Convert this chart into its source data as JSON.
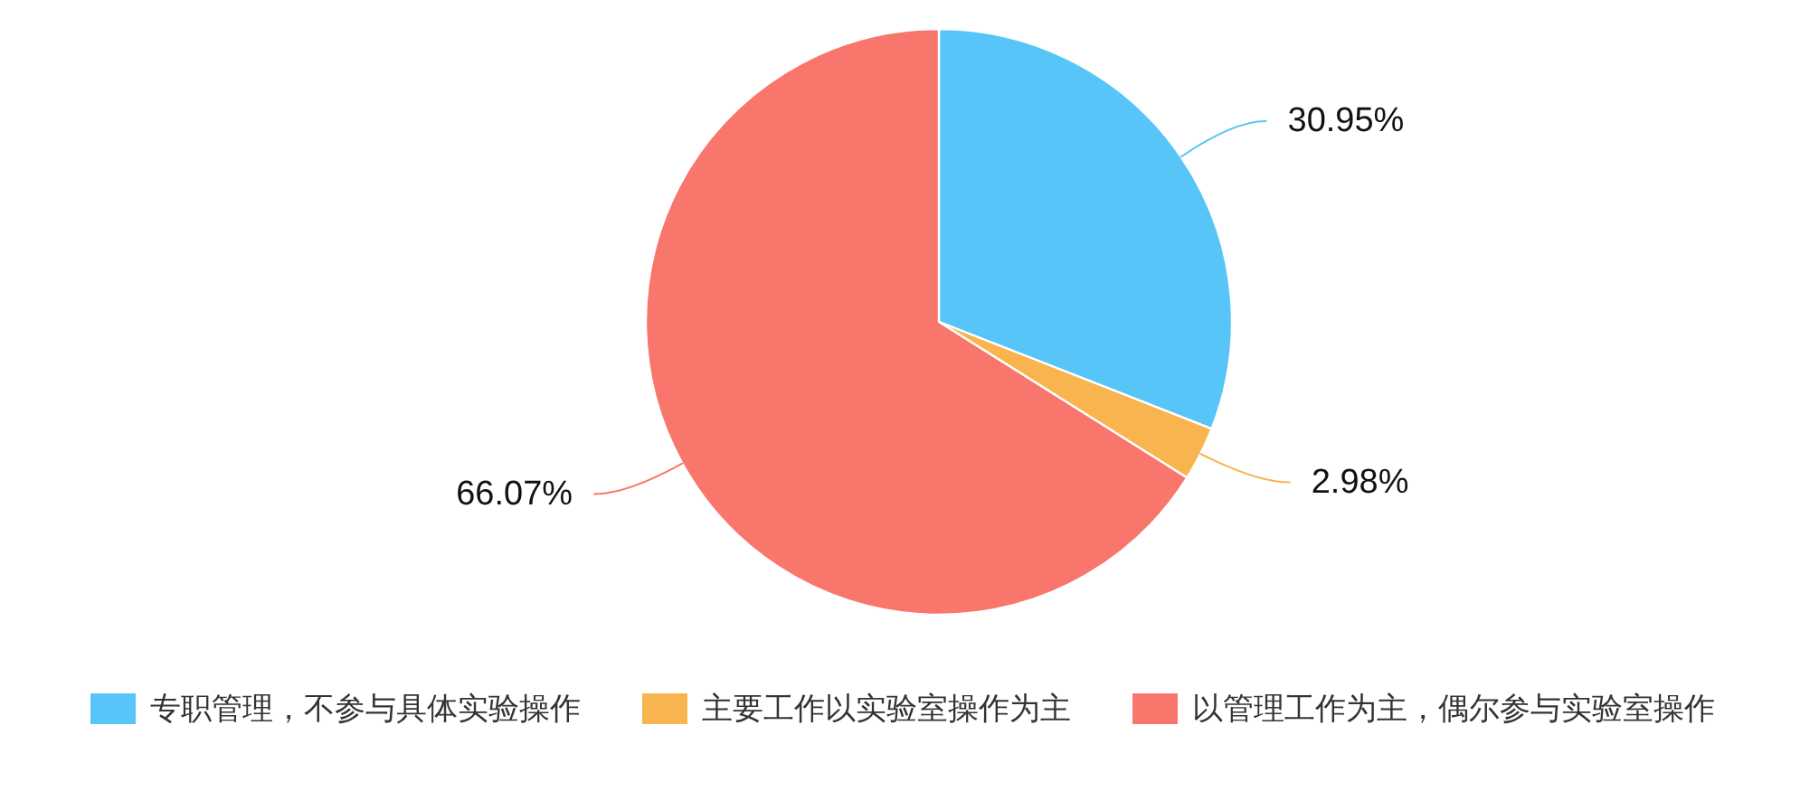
{
  "chart_data": {
    "type": "pie",
    "categories": [
      "专职管理，不参与具体实验操作",
      "主要工作以实验室操作为主",
      "以管理工作为主，偶尔参与实验室操作"
    ],
    "values": [
      30.95,
      2.98,
      66.07
    ],
    "colors": [
      "#58c5f8",
      "#f8b54f",
      "#f8766b"
    ],
    "value_labels": [
      "30.95%",
      "2.98%",
      "66.07%"
    ],
    "legend": "bottom"
  }
}
